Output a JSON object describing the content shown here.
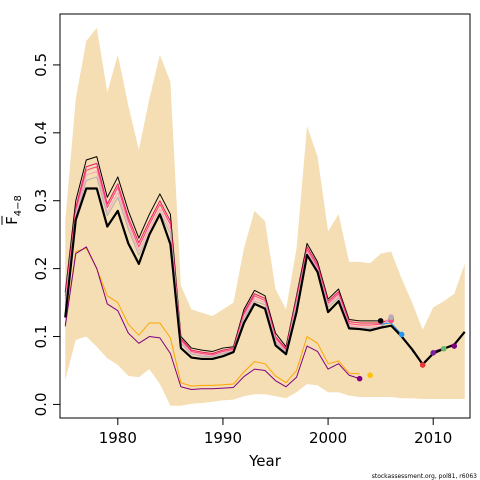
{
  "chart_data": {
    "type": "line",
    "title": "",
    "xlabel": "Year",
    "ylabel_main": "F",
    "ylabel_sub": "4−8",
    "ylabel_bar": true,
    "xlim": [
      1974.5,
      2013.5
    ],
    "ylim": [
      -0.02,
      0.575
    ],
    "x_ticks": [
      1980,
      1990,
      2000,
      2010
    ],
    "y_ticks": [
      0.0,
      0.1,
      0.2,
      0.3,
      0.4,
      0.5
    ],
    "y_tick_labels": [
      "0.0",
      "0.1",
      "0.2",
      "0.3",
      "0.4",
      "0.5"
    ],
    "grid": false,
    "legend": "none",
    "footnote": "stockassessment.org, pol81, r6063",
    "colors": {
      "band": "#F5DEB3",
      "final": "#000000",
      "retro": [
        "#000000",
        "#E91E63",
        "#FF4081",
        "#F4A6C0",
        "#B0B0B0",
        "#2196F3",
        "#E53935",
        "#7B1FA2",
        "#66BB6A",
        "#FFC107",
        "#800080"
      ]
    },
    "band": {
      "x": [
        1975,
        1976,
        1977,
        1978,
        1979,
        1980,
        1981,
        1982,
        1983,
        1984,
        1985,
        1986,
        1987,
        1988,
        1989,
        1990,
        1991,
        1992,
        1993,
        1994,
        1995,
        1996,
        1997,
        1998,
        1999,
        2000,
        2001,
        2002,
        2003,
        2004,
        2005,
        2006,
        2007,
        2008,
        2009,
        2010,
        2011,
        2012,
        2013
      ],
      "upper": [
        0.27,
        0.45,
        0.535,
        0.555,
        0.46,
        0.515,
        0.44,
        0.375,
        0.45,
        0.515,
        0.475,
        0.175,
        0.14,
        0.135,
        0.13,
        0.14,
        0.15,
        0.23,
        0.285,
        0.27,
        0.17,
        0.14,
        0.23,
        0.41,
        0.365,
        0.255,
        0.28,
        0.21,
        0.21,
        0.208,
        0.222,
        0.225,
        0.185,
        0.15,
        0.11,
        0.143,
        0.152,
        0.163,
        0.207
      ],
      "lower": [
        0.036,
        0.095,
        0.1,
        0.085,
        0.068,
        0.058,
        0.042,
        0.04,
        0.052,
        0.03,
        -0.002,
        -0.002,
        0.001,
        0.002,
        0.004,
        0.006,
        0.007,
        0.012,
        0.015,
        0.015,
        0.012,
        0.009,
        0.018,
        0.03,
        0.028,
        0.018,
        0.018,
        0.013,
        0.011,
        0.011,
        0.011,
        0.011,
        0.009,
        0.009,
        0.008,
        0.008,
        0.008,
        0.008,
        0.008
      ]
    },
    "series": [
      {
        "color": "#000000",
        "width": 1,
        "x": [
          1975,
          1976,
          1977,
          1978,
          1979,
          1980,
          1981,
          1982,
          1983,
          1984,
          1985,
          1986,
          1987,
          1988,
          1989,
          1990,
          1991,
          1992,
          1993,
          1994,
          1995,
          1996,
          1997,
          1998,
          1999,
          2000,
          2001,
          2002,
          2003,
          2004,
          2005
        ],
        "y": [
          0.165,
          0.3,
          0.36,
          0.365,
          0.305,
          0.335,
          0.285,
          0.245,
          0.28,
          0.31,
          0.28,
          0.1,
          0.083,
          0.08,
          0.078,
          0.083,
          0.085,
          0.14,
          0.168,
          0.16,
          0.105,
          0.085,
          0.16,
          0.237,
          0.21,
          0.155,
          0.17,
          0.125,
          0.123,
          0.123,
          0.123
        ],
        "end_marker": true
      },
      {
        "color": "#E91E63",
        "width": 1,
        "x": [
          1975,
          1976,
          1977,
          1978,
          1979,
          1980,
          1981,
          1982,
          1983,
          1984,
          1985,
          1986,
          1987,
          1988,
          1989,
          1990,
          1991,
          1992,
          1993,
          1994,
          1995,
          1996,
          1997,
          1998,
          1999,
          2000,
          2001,
          2002,
          2003,
          2004,
          2005,
          2006
        ],
        "y": [
          0.16,
          0.29,
          0.35,
          0.355,
          0.295,
          0.325,
          0.275,
          0.238,
          0.27,
          0.3,
          0.27,
          0.097,
          0.08,
          0.077,
          0.075,
          0.08,
          0.083,
          0.136,
          0.163,
          0.156,
          0.1,
          0.082,
          0.157,
          0.232,
          0.206,
          0.152,
          0.166,
          0.122,
          0.12,
          0.12,
          0.12,
          0.126
        ],
        "end_marker": true
      },
      {
        "color": "#FF4081",
        "width": 1,
        "x": [
          1975,
          1976,
          1977,
          1978,
          1979,
          1980,
          1981,
          1982,
          1983,
          1984,
          1985,
          1986,
          1987,
          1988,
          1989,
          1990,
          1991,
          1992,
          1993,
          1994,
          1995,
          1996,
          1997,
          1998,
          1999,
          2000,
          2001,
          2002,
          2003,
          2004,
          2005,
          2006
        ],
        "y": [
          0.155,
          0.285,
          0.345,
          0.35,
          0.29,
          0.32,
          0.27,
          0.232,
          0.265,
          0.295,
          0.265,
          0.095,
          0.078,
          0.075,
          0.073,
          0.078,
          0.081,
          0.133,
          0.16,
          0.153,
          0.098,
          0.08,
          0.153,
          0.228,
          0.203,
          0.149,
          0.163,
          0.119,
          0.117,
          0.117,
          0.118,
          0.124
        ],
        "end_marker": true
      },
      {
        "color": "#F4A6C0",
        "width": 1,
        "x": [
          1975,
          1976,
          1977,
          1978,
          1979,
          1980,
          1981,
          1982,
          1983,
          1984,
          1985,
          1986,
          1987,
          1988,
          1989,
          1990,
          1991,
          1992,
          1993,
          1994,
          1995,
          1996,
          1997,
          1998,
          1999,
          2000,
          2001,
          2002,
          2003,
          2004,
          2005,
          2006
        ],
        "y": [
          0.15,
          0.28,
          0.338,
          0.343,
          0.283,
          0.312,
          0.263,
          0.226,
          0.258,
          0.288,
          0.258,
          0.092,
          0.076,
          0.073,
          0.071,
          0.076,
          0.079,
          0.13,
          0.156,
          0.15,
          0.095,
          0.078,
          0.15,
          0.225,
          0.2,
          0.146,
          0.16,
          0.116,
          0.114,
          0.114,
          0.115,
          0.129
        ],
        "end_marker": true
      },
      {
        "color": "#B0B0B0",
        "width": 1,
        "x": [
          1975,
          1976,
          1977,
          1978,
          1979,
          1980,
          1981,
          1982,
          1983,
          1984,
          1985,
          1986,
          1987,
          1988,
          1989,
          1990,
          1991,
          1992,
          1993,
          1994,
          1995,
          1996,
          1997,
          1998,
          1999,
          2000,
          2001,
          2002,
          2003,
          2004,
          2005,
          2006
        ],
        "y": [
          0.145,
          0.275,
          0.33,
          0.335,
          0.278,
          0.305,
          0.258,
          0.22,
          0.252,
          0.282,
          0.252,
          0.09,
          0.074,
          0.071,
          0.07,
          0.075,
          0.078,
          0.127,
          0.152,
          0.147,
          0.092,
          0.076,
          0.147,
          0.222,
          0.198,
          0.143,
          0.157,
          0.114,
          0.112,
          0.112,
          0.113,
          0.128
        ],
        "end_marker": true
      },
      {
        "color": "#2196F3",
        "width": 1,
        "x": [
          2005,
          2006,
          2007
        ],
        "y": [
          0.118,
          0.12,
          0.103
        ],
        "end_marker": true
      },
      {
        "color": "#E53935",
        "width": 1,
        "x": [
          2007,
          2008,
          2009
        ],
        "y": [
          0.1,
          0.08,
          0.058
        ],
        "end_marker": true
      },
      {
        "color": "#7B1FA2",
        "width": 1,
        "x": [
          2008,
          2009,
          2010
        ],
        "y": [
          0.079,
          0.06,
          0.076
        ],
        "end_marker": true
      },
      {
        "color": "#66BB6A",
        "width": 1,
        "x": [
          2009,
          2010,
          2011
        ],
        "y": [
          0.059,
          0.077,
          0.082
        ],
        "end_marker": true
      },
      {
        "color": "#800080",
        "width": 1,
        "x": [
          2010,
          2011,
          2012
        ],
        "y": [
          0.078,
          0.083,
          0.086
        ],
        "end_marker": true
      },
      {
        "color": "#FFA500",
        "width": 1,
        "x": [
          1975,
          1976,
          1977,
          1978,
          1979,
          1980,
          1981,
          1982,
          1983,
          1984,
          1985,
          1986,
          1987,
          1988,
          1989,
          1990,
          1991,
          1992,
          1993,
          1994,
          1995,
          1996,
          1997,
          1998,
          1999,
          2000,
          2001,
          2002,
          2003
        ],
        "y": [
          0.118,
          0.225,
          0.23,
          0.2,
          0.16,
          0.15,
          0.118,
          0.102,
          0.12,
          0.12,
          0.098,
          0.032,
          0.027,
          0.028,
          0.028,
          0.029,
          0.03,
          0.048,
          0.063,
          0.06,
          0.042,
          0.032,
          0.05,
          0.1,
          0.09,
          0.06,
          0.064,
          0.046,
          0.045
        ],
        "end_marker": false
      },
      {
        "color": "#800080",
        "width": 1,
        "x": [
          1975,
          1976,
          1977,
          1978,
          1979,
          1980,
          1981,
          1982,
          1983,
          1984,
          1985,
          1986,
          1987,
          1988,
          1989,
          1990,
          1991,
          1992,
          1993,
          1994,
          1995,
          1996,
          1997,
          1998,
          1999,
          2000,
          2001,
          2002,
          2003
        ],
        "y": [
          0.115,
          0.222,
          0.232,
          0.2,
          0.148,
          0.138,
          0.105,
          0.09,
          0.1,
          0.098,
          0.075,
          0.026,
          0.022,
          0.023,
          0.023,
          0.024,
          0.025,
          0.041,
          0.052,
          0.05,
          0.035,
          0.026,
          0.04,
          0.086,
          0.078,
          0.052,
          0.06,
          0.043,
          0.038
        ],
        "end_marker": true
      },
      {
        "color": "#000000",
        "width": 2.2,
        "x": [
          1975,
          1976,
          1977,
          1978,
          1979,
          1980,
          1981,
          1982,
          1983,
          1984,
          1985,
          1986,
          1987,
          1988,
          1989,
          1990,
          1991,
          1992,
          1993,
          1994,
          1995,
          1996,
          1997,
          1998,
          1999,
          2000,
          2001,
          2002,
          2003,
          2004,
          2005,
          2006,
          2007,
          2008,
          2009,
          2010,
          2011,
          2012,
          2013
        ],
        "y": [
          0.128,
          0.272,
          0.318,
          0.318,
          0.262,
          0.285,
          0.237,
          0.207,
          0.25,
          0.28,
          0.236,
          0.083,
          0.069,
          0.067,
          0.067,
          0.071,
          0.077,
          0.12,
          0.148,
          0.141,
          0.087,
          0.074,
          0.136,
          0.22,
          0.195,
          0.136,
          0.152,
          0.112,
          0.111,
          0.109,
          0.113,
          0.116,
          0.1,
          0.081,
          0.059,
          0.075,
          0.082,
          0.088,
          0.107
        ],
        "end_marker": false
      }
    ],
    "extra_points": [
      {
        "x": 2004,
        "y": 0.043,
        "color": "#FFC107"
      }
    ]
  }
}
